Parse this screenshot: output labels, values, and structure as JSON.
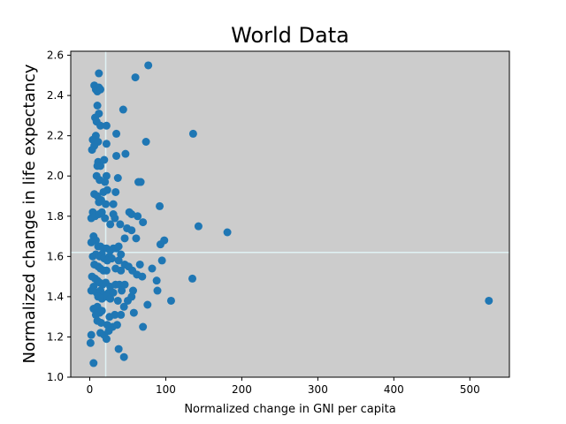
{
  "chart_data": {
    "type": "scatter",
    "title": "World Data",
    "xlabel": "Normalized change in GNI per capita",
    "ylabel": "Normalized change in life expectancy",
    "xlim": [
      -25,
      552
    ],
    "ylim": [
      1.0,
      2.62
    ],
    "xticks": [
      0,
      100,
      200,
      300,
      400,
      500
    ],
    "yticks": [
      1.0,
      1.2,
      1.4,
      1.6,
      1.8,
      2.0,
      2.2,
      2.4,
      2.6
    ],
    "grid": false,
    "colors": {
      "background": "#cccccc",
      "marker": "#1f77b4",
      "reference_line": "#e0f2f5"
    },
    "reference_lines": {
      "x": 21,
      "y": 1.62
    },
    "points": [
      [
        12,
        2.51
      ],
      [
        77,
        2.55
      ],
      [
        60,
        2.49
      ],
      [
        6,
        2.45
      ],
      [
        8,
        2.43
      ],
      [
        12,
        2.44
      ],
      [
        10,
        2.42
      ],
      [
        14,
        2.43
      ],
      [
        10,
        2.35
      ],
      [
        12,
        2.31
      ],
      [
        7,
        2.29
      ],
      [
        44,
        2.33
      ],
      [
        9,
        2.27
      ],
      [
        14,
        2.25
      ],
      [
        22,
        2.25
      ],
      [
        35,
        2.21
      ],
      [
        8,
        2.2
      ],
      [
        4,
        2.18
      ],
      [
        11,
        2.17
      ],
      [
        6,
        2.15
      ],
      [
        3,
        2.13
      ],
      [
        22,
        2.16
      ],
      [
        74,
        2.17
      ],
      [
        136,
        2.21
      ],
      [
        11,
        2.07
      ],
      [
        14,
        2.05
      ],
      [
        19,
        2.08
      ],
      [
        35,
        2.1
      ],
      [
        47,
        2.11
      ],
      [
        10,
        2.05
      ],
      [
        9,
        2.0
      ],
      [
        13,
        1.98
      ],
      [
        22,
        2.0
      ],
      [
        20,
        1.97
      ],
      [
        23,
        1.93
      ],
      [
        18,
        1.92
      ],
      [
        37,
        1.99
      ],
      [
        34,
        1.92
      ],
      [
        64,
        1.97
      ],
      [
        67,
        1.97
      ],
      [
        6,
        1.91
      ],
      [
        10,
        1.9
      ],
      [
        12,
        1.87
      ],
      [
        15,
        1.88
      ],
      [
        21,
        1.86
      ],
      [
        31,
        1.86
      ],
      [
        92,
        1.85
      ],
      [
        4,
        1.82
      ],
      [
        2,
        1.79
      ],
      [
        7,
        1.8
      ],
      [
        12,
        1.81
      ],
      [
        16,
        1.82
      ],
      [
        20,
        1.79
      ],
      [
        31,
        1.81
      ],
      [
        33,
        1.79
      ],
      [
        40,
        1.76
      ],
      [
        52,
        1.82
      ],
      [
        55,
        1.81
      ],
      [
        63,
        1.8
      ],
      [
        70,
        1.77
      ],
      [
        27,
        1.76
      ],
      [
        49,
        1.74
      ],
      [
        55,
        1.73
      ],
      [
        46,
        1.69
      ],
      [
        61,
        1.69
      ],
      [
        93,
        1.66
      ],
      [
        98,
        1.68
      ],
      [
        143,
        1.75
      ],
      [
        181,
        1.72
      ],
      [
        5,
        1.7
      ],
      [
        8,
        1.68
      ],
      [
        2,
        1.67
      ],
      [
        11,
        1.65
      ],
      [
        14,
        1.65
      ],
      [
        18,
        1.64
      ],
      [
        22,
        1.64
      ],
      [
        27,
        1.63
      ],
      [
        31,
        1.64
      ],
      [
        35,
        1.64
      ],
      [
        38,
        1.65
      ],
      [
        41,
        1.61
      ],
      [
        4,
        1.6
      ],
      [
        8,
        1.61
      ],
      [
        13,
        1.6
      ],
      [
        16,
        1.61
      ],
      [
        19,
        1.59
      ],
      [
        23,
        1.58
      ],
      [
        26,
        1.6
      ],
      [
        29,
        1.59
      ],
      [
        38,
        1.58
      ],
      [
        46,
        1.56
      ],
      [
        51,
        1.55
      ],
      [
        66,
        1.56
      ],
      [
        95,
        1.58
      ],
      [
        6,
        1.56
      ],
      [
        11,
        1.55
      ],
      [
        14,
        1.54
      ],
      [
        18,
        1.53
      ],
      [
        22,
        1.53
      ],
      [
        34,
        1.54
      ],
      [
        41,
        1.53
      ],
      [
        56,
        1.53
      ],
      [
        62,
        1.51
      ],
      [
        69,
        1.5
      ],
      [
        82,
        1.54
      ],
      [
        3,
        1.5
      ],
      [
        7,
        1.49
      ],
      [
        10,
        1.48
      ],
      [
        13,
        1.47
      ],
      [
        17,
        1.46
      ],
      [
        21,
        1.47
      ],
      [
        27,
        1.45
      ],
      [
        34,
        1.46
      ],
      [
        39,
        1.46
      ],
      [
        46,
        1.46
      ],
      [
        88,
        1.48
      ],
      [
        135,
        1.49
      ],
      [
        5,
        1.45
      ],
      [
        2,
        1.43
      ],
      [
        9,
        1.42
      ],
      [
        14,
        1.43
      ],
      [
        19,
        1.41
      ],
      [
        25,
        1.42
      ],
      [
        31,
        1.42
      ],
      [
        42,
        1.43
      ],
      [
        57,
        1.43
      ],
      [
        89,
        1.43
      ],
      [
        11,
        1.4
      ],
      [
        16,
        1.39
      ],
      [
        22,
        1.4
      ],
      [
        27,
        1.39
      ],
      [
        37,
        1.38
      ],
      [
        50,
        1.38
      ],
      [
        55,
        1.4
      ],
      [
        76,
        1.36
      ],
      [
        107,
        1.38
      ],
      [
        525,
        1.38
      ],
      [
        5,
        1.34
      ],
      [
        10,
        1.35
      ],
      [
        13,
        1.32
      ],
      [
        8,
        1.31
      ],
      [
        16,
        1.33
      ],
      [
        26,
        1.3
      ],
      [
        33,
        1.31
      ],
      [
        41,
        1.31
      ],
      [
        45,
        1.35
      ],
      [
        58,
        1.32
      ],
      [
        10,
        1.28
      ],
      [
        15,
        1.27
      ],
      [
        23,
        1.26
      ],
      [
        30,
        1.25
      ],
      [
        36,
        1.26
      ],
      [
        70,
        1.25
      ],
      [
        14,
        1.22
      ],
      [
        19,
        1.21
      ],
      [
        25,
        1.23
      ],
      [
        2,
        1.21
      ],
      [
        22,
        1.19
      ],
      [
        1,
        1.17
      ],
      [
        38,
        1.14
      ],
      [
        45,
        1.1
      ],
      [
        5,
        1.07
      ]
    ]
  }
}
